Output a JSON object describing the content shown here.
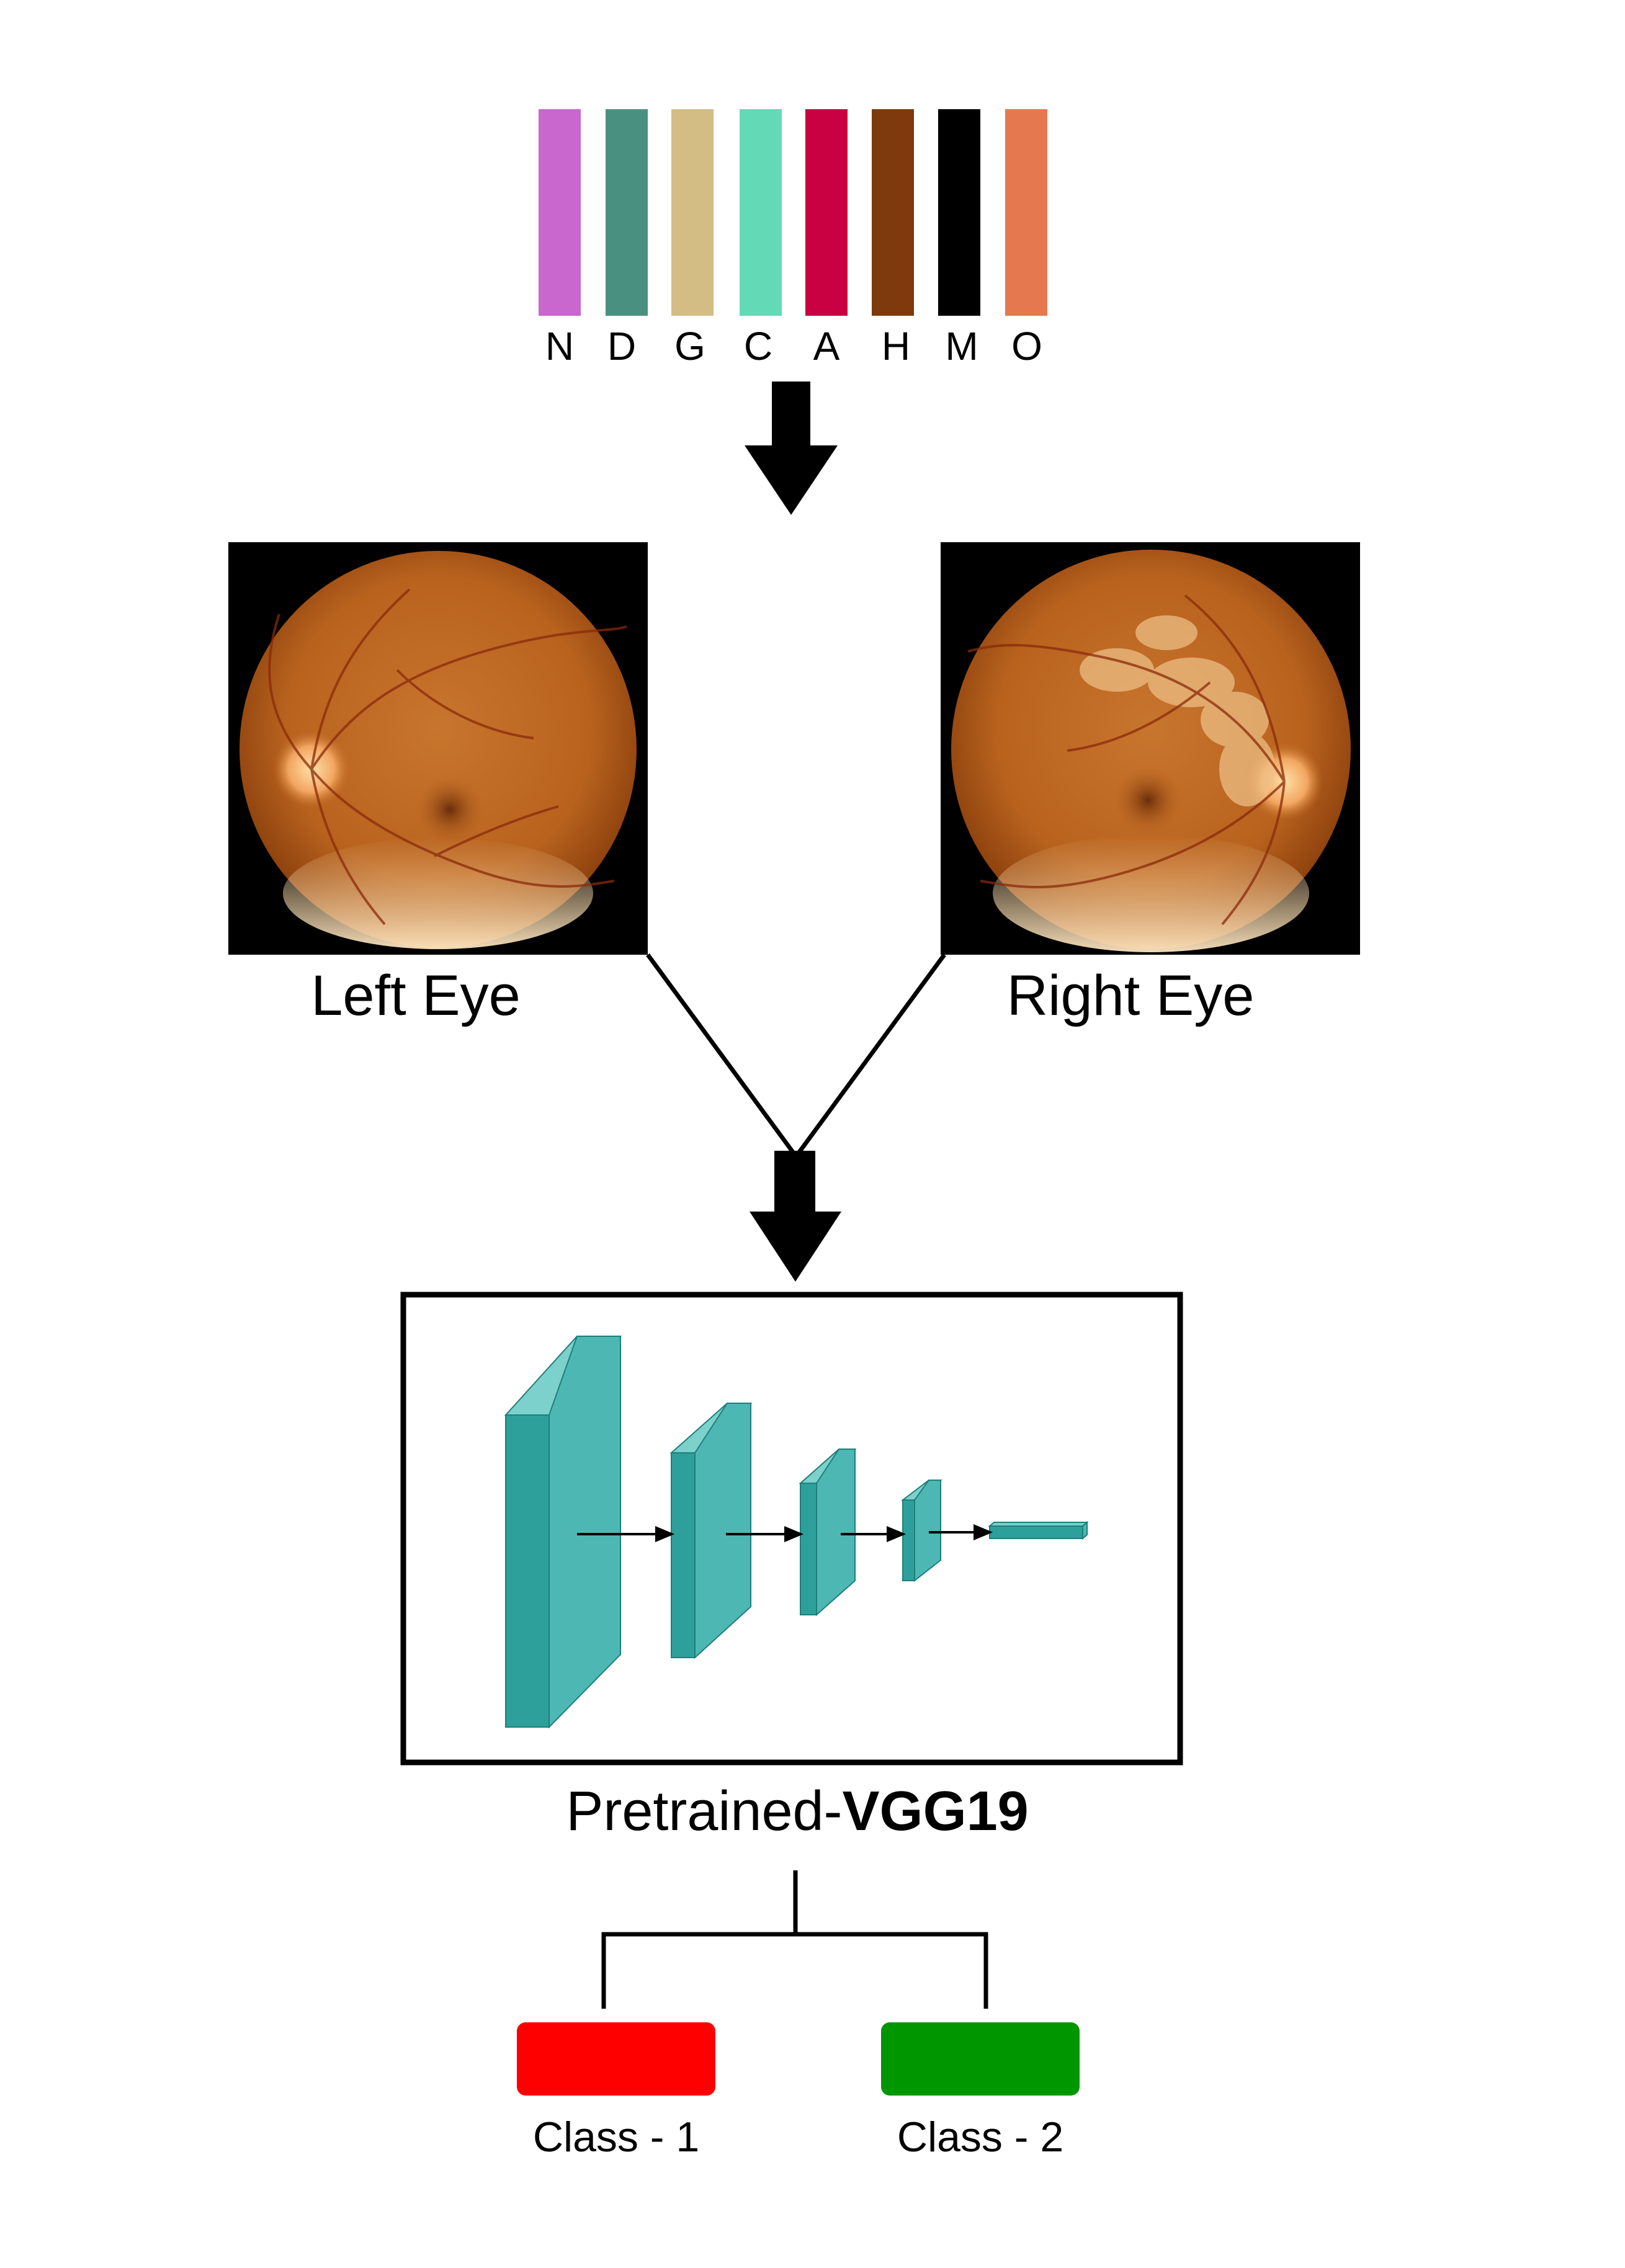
{
  "categories": [
    {
      "label": "N",
      "color": "#C967CF"
    },
    {
      "label": "D",
      "color": "#4A9080"
    },
    {
      "label": "G",
      "color": "#D4BC85"
    },
    {
      "label": "C",
      "color": "#63D9B6"
    },
    {
      "label": "A",
      "color": "#C90042"
    },
    {
      "label": "H",
      "color": "#7E3A0C"
    },
    {
      "label": "M",
      "color": "#000000"
    },
    {
      "label": "O",
      "color": "#E5784E"
    }
  ],
  "eyes": {
    "left_label": "Left Eye",
    "right_label": "Right Eye"
  },
  "model": {
    "label_prefix": "Pretrained-",
    "label_bold": "VGG19",
    "layer_color": "#2EA09C",
    "layer_top_color": "#7CD1CC",
    "layer_side_color": "#4DB8B3"
  },
  "outputs": [
    {
      "label": "Class - 1",
      "color": "#FF0000"
    },
    {
      "label": "Class - 2",
      "color": "#009600"
    }
  ]
}
